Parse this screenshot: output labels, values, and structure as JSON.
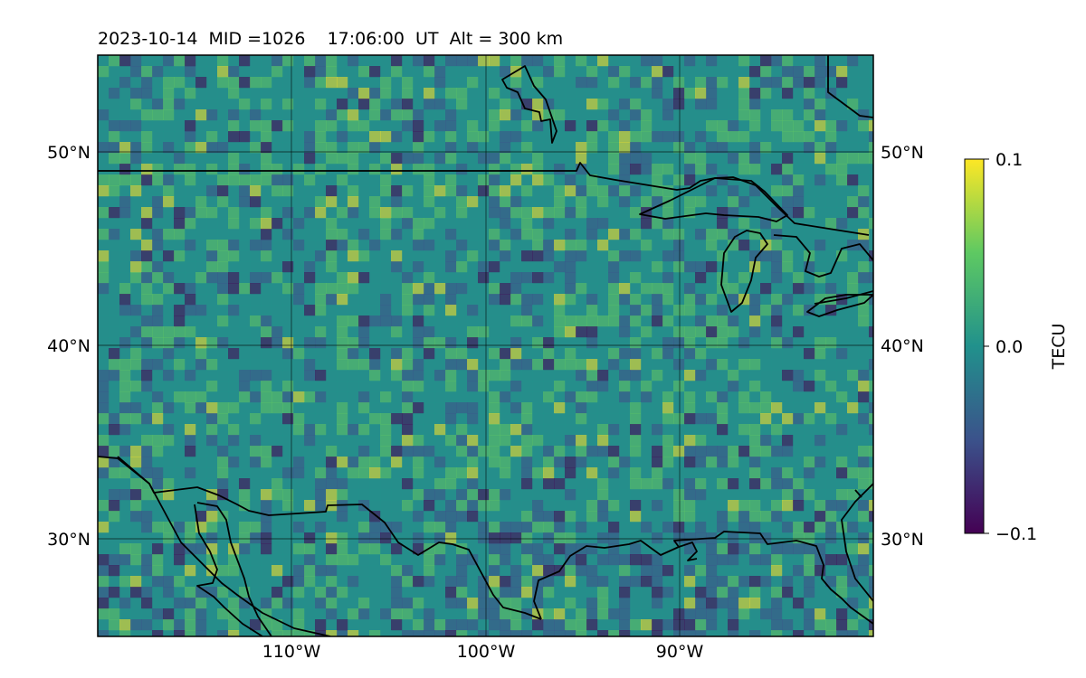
{
  "title": "2023-10-14  MID =1026    17:06:00  UT  Alt = 300 km",
  "map": {
    "lon_range": [
      -120,
      -80
    ],
    "lat_range": [
      25,
      55
    ],
    "lat_ticks": [
      {
        "value": 50,
        "label": "50°N"
      },
      {
        "value": 40,
        "label": "40°N"
      },
      {
        "value": 30,
        "label": "30°N"
      }
    ],
    "lon_ticks": [
      {
        "value": -110,
        "label": "110°W"
      },
      {
        "value": -100,
        "label": "100°W"
      },
      {
        "value": -90,
        "label": "90°W"
      }
    ],
    "gridlines": true
  },
  "colorbar": {
    "label": "TECU",
    "colormap": "viridis",
    "range": [
      -0.1,
      0.1
    ],
    "ticks": [
      {
        "value": 0.1,
        "label": "0.1"
      },
      {
        "value": 0.0,
        "label": "0.0"
      },
      {
        "value": -0.1,
        "label": "−0.1"
      }
    ],
    "colors": [
      "#440154",
      "#3b528b",
      "#21918c",
      "#5ec962",
      "#fde725"
    ]
  }
}
